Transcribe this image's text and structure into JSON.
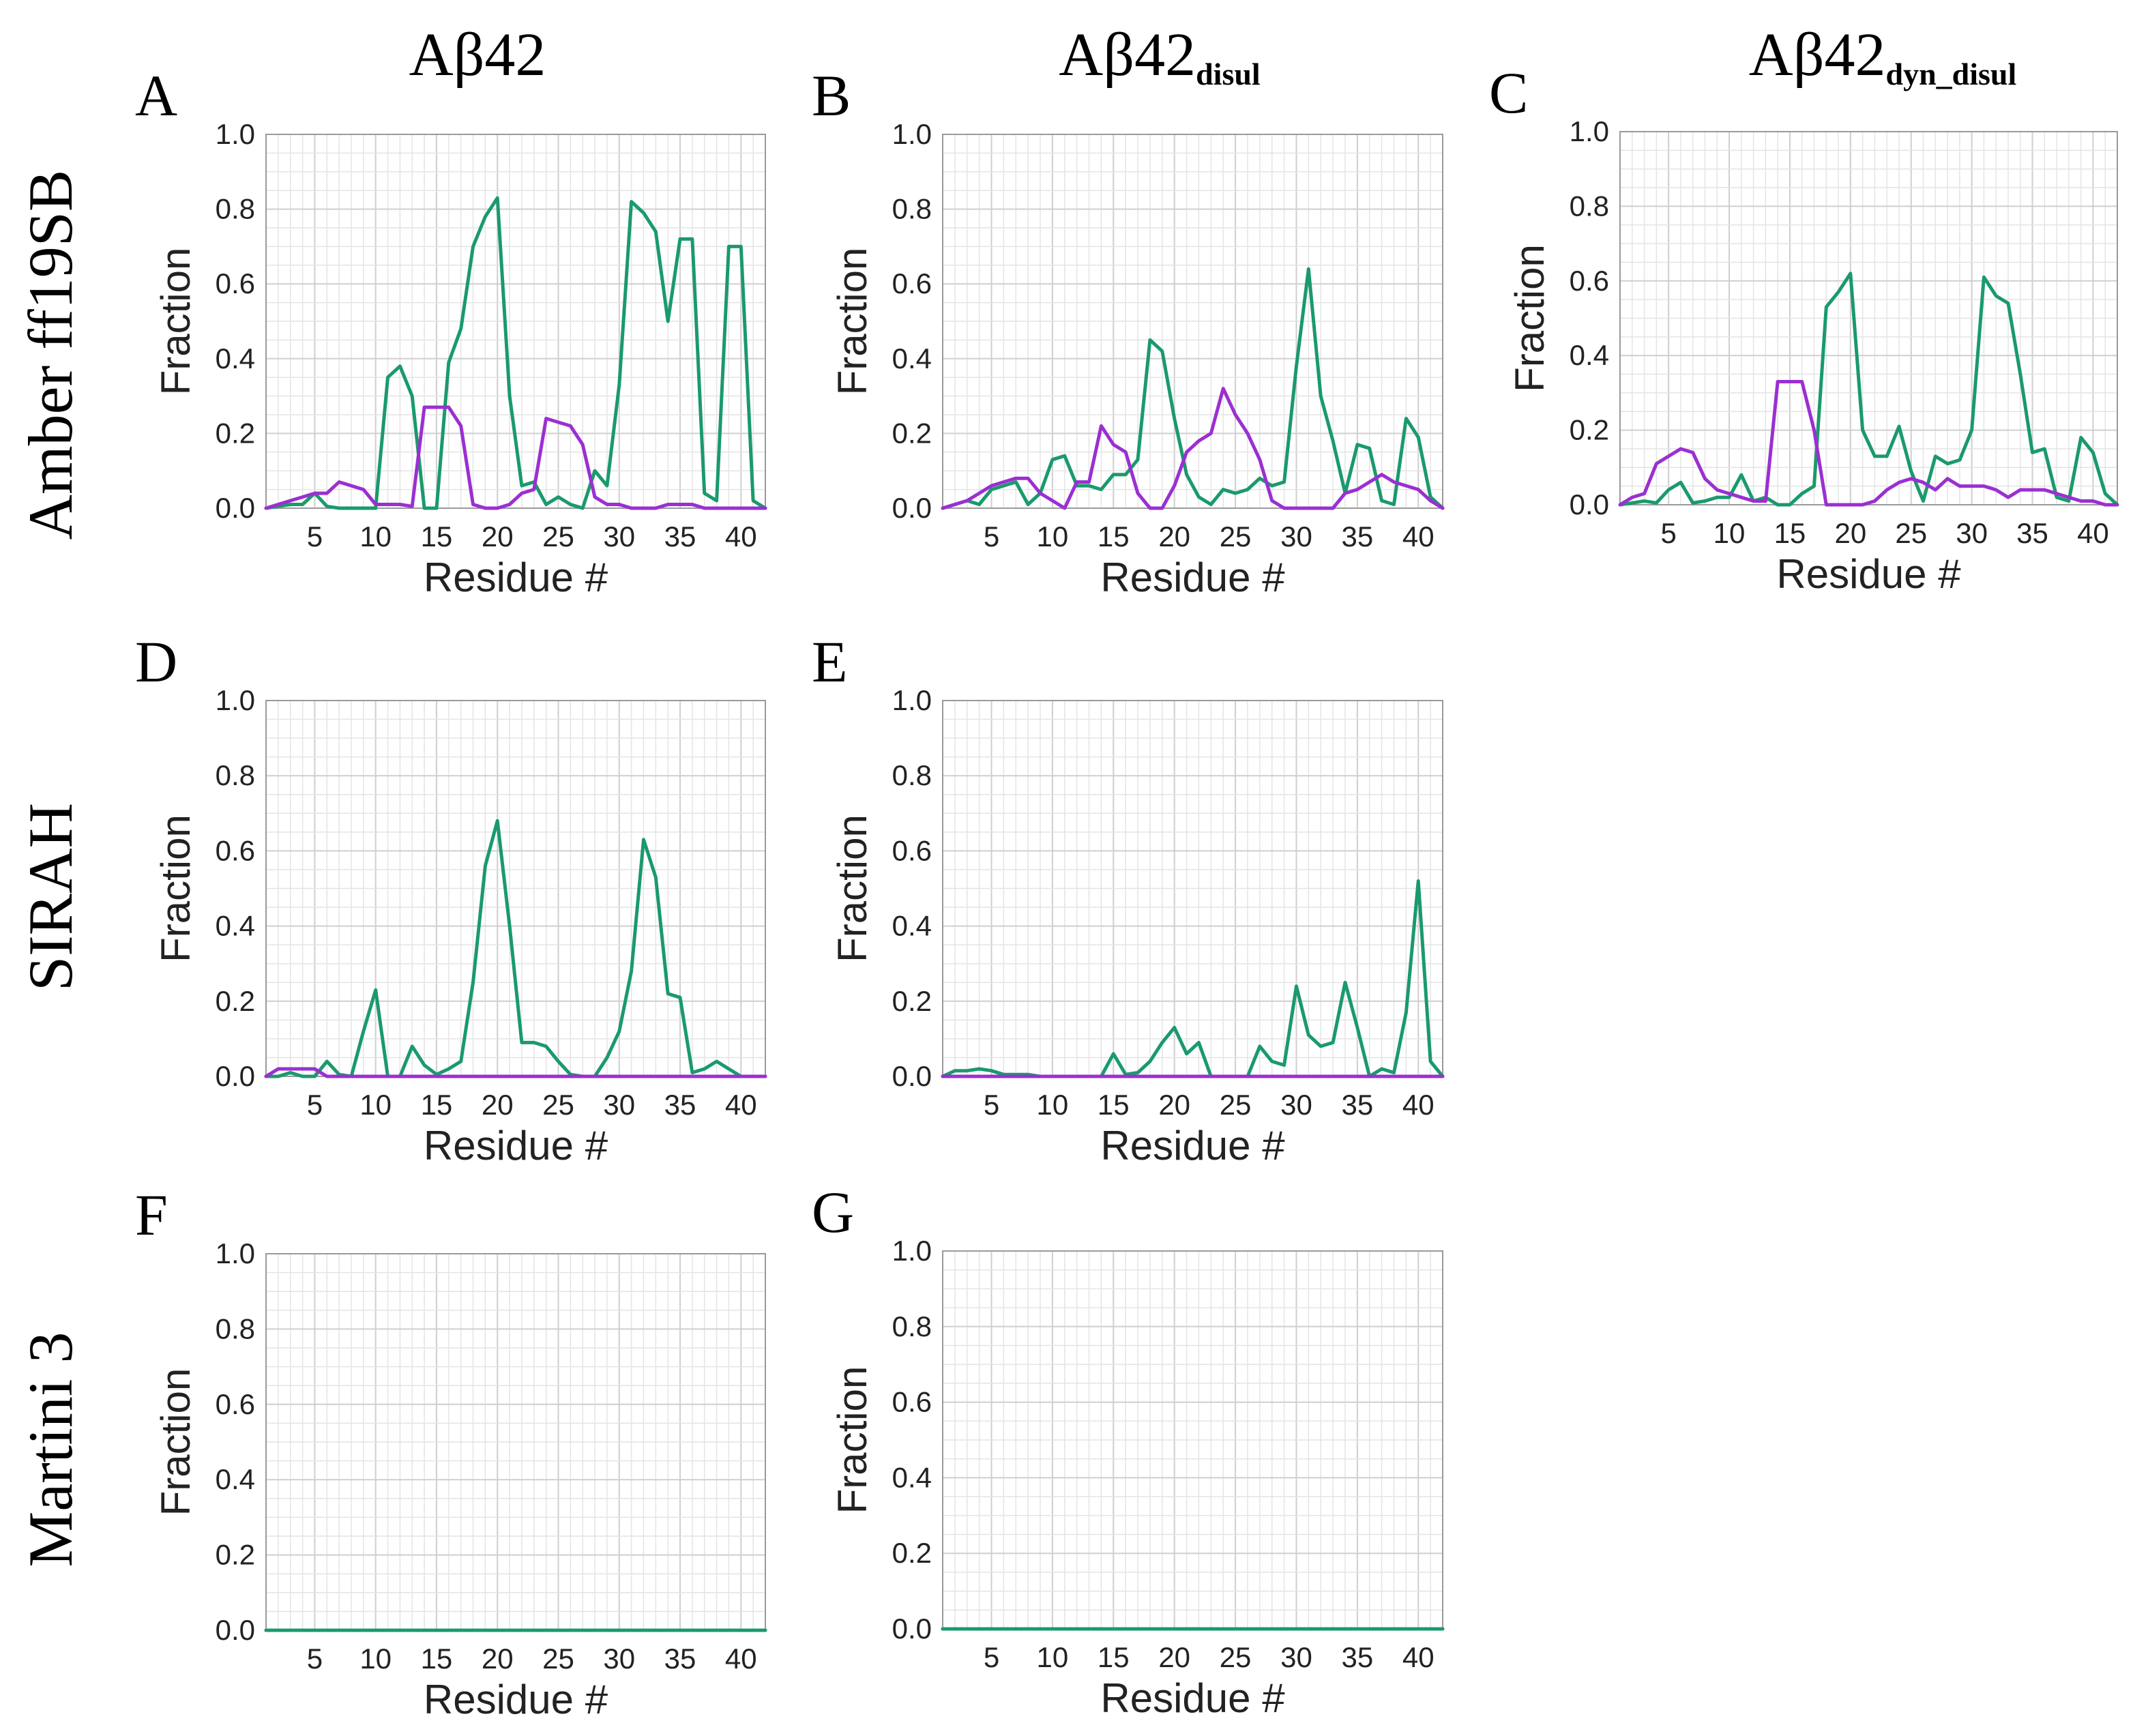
{
  "figure": {
    "columns": [
      {
        "base": "Aβ42",
        "sub": ""
      },
      {
        "base": "Aβ42",
        "sub": "disul"
      },
      {
        "base": "Aβ42",
        "sub": "dyn_disul"
      }
    ],
    "rows": [
      "Amber ff19SB",
      "SIRAH",
      "Martini 3"
    ]
  },
  "colors": {
    "green": "#1a9a6c",
    "purple": "#9b2fd2"
  },
  "chart_data": [
    {
      "panel": "A",
      "type": "line",
      "xlabel": "Residue #",
      "ylabel": "Fraction",
      "xlim": [
        1,
        42
      ],
      "ylim": [
        0,
        1.0
      ],
      "xticks": [
        5,
        10,
        15,
        20,
        25,
        30,
        35,
        40
      ],
      "yticks": [
        "0.0",
        "0.2",
        "0.4",
        "0.6",
        "0.8",
        "1.0"
      ],
      "series": [
        {
          "color": "green",
          "x": [
            1,
            2,
            3,
            4,
            5,
            6,
            7,
            8,
            9,
            10,
            11,
            12,
            13,
            14,
            15,
            16,
            17,
            18,
            19,
            20,
            21,
            22,
            23,
            24,
            25,
            26,
            27,
            28,
            29,
            30,
            31,
            32,
            33,
            34,
            35,
            36,
            37,
            38,
            39,
            40,
            41,
            42
          ],
          "y": [
            0,
            0.005,
            0.01,
            0.01,
            0.04,
            0.005,
            0,
            0,
            0,
            0,
            0.35,
            0.38,
            0.3,
            0,
            0,
            0.39,
            0.48,
            0.7,
            0.78,
            0.83,
            0.3,
            0.06,
            0.07,
            0.01,
            0.03,
            0.01,
            0,
            0.1,
            0.06,
            0.33,
            0.82,
            0.79,
            0.74,
            0.5,
            0.72,
            0.72,
            0.04,
            0.02,
            0.7,
            0.7,
            0.02,
            0
          ]
        },
        {
          "color": "purple",
          "x": [
            1,
            2,
            3,
            4,
            5,
            6,
            7,
            8,
            9,
            10,
            11,
            12,
            13,
            14,
            15,
            16,
            17,
            18,
            19,
            20,
            21,
            22,
            23,
            24,
            25,
            26,
            27,
            28,
            29,
            30,
            31,
            32,
            33,
            34,
            35,
            36,
            37,
            38,
            39,
            40,
            41,
            42
          ],
          "y": [
            0,
            0.01,
            0.02,
            0.03,
            0.04,
            0.04,
            0.07,
            0.06,
            0.05,
            0.01,
            0.01,
            0.01,
            0.005,
            0.27,
            0.27,
            0.27,
            0.22,
            0.01,
            0,
            0,
            0.01,
            0.04,
            0.05,
            0.24,
            0.23,
            0.22,
            0.17,
            0.03,
            0.01,
            0.01,
            0,
            0,
            0,
            0.01,
            0.01,
            0.01,
            0,
            0,
            0,
            0,
            0,
            0
          ]
        }
      ]
    },
    {
      "panel": "B",
      "type": "line",
      "xlabel": "Residue #",
      "ylabel": "Fraction",
      "xlim": [
        1,
        42
      ],
      "ylim": [
        0,
        1.0
      ],
      "xticks": [
        5,
        10,
        15,
        20,
        25,
        30,
        35,
        40
      ],
      "yticks": [
        "0.0",
        "0.2",
        "0.4",
        "0.6",
        "0.8",
        "1.0"
      ],
      "series": [
        {
          "color": "green",
          "x": [
            1,
            2,
            3,
            4,
            5,
            6,
            7,
            8,
            9,
            10,
            11,
            12,
            13,
            14,
            15,
            16,
            17,
            18,
            19,
            20,
            21,
            22,
            23,
            24,
            25,
            26,
            27,
            28,
            29,
            30,
            31,
            32,
            33,
            34,
            35,
            36,
            37,
            38,
            39,
            40,
            41,
            42
          ],
          "y": [
            0,
            0.01,
            0.02,
            0.01,
            0.05,
            0.06,
            0.07,
            0.01,
            0.04,
            0.13,
            0.14,
            0.06,
            0.06,
            0.05,
            0.09,
            0.09,
            0.13,
            0.45,
            0.42,
            0.24,
            0.09,
            0.03,
            0.01,
            0.05,
            0.04,
            0.05,
            0.08,
            0.06,
            0.07,
            0.38,
            0.64,
            0.3,
            0.18,
            0.04,
            0.17,
            0.16,
            0.02,
            0.01,
            0.24,
            0.19,
            0.03,
            0
          ]
        },
        {
          "color": "purple",
          "x": [
            1,
            2,
            3,
            4,
            5,
            6,
            7,
            8,
            9,
            10,
            11,
            12,
            13,
            14,
            15,
            16,
            17,
            18,
            19,
            20,
            21,
            22,
            23,
            24,
            25,
            26,
            27,
            28,
            29,
            30,
            31,
            32,
            33,
            34,
            35,
            36,
            37,
            38,
            39,
            40,
            41,
            42
          ],
          "y": [
            0,
            0.01,
            0.02,
            0.04,
            0.06,
            0.07,
            0.08,
            0.08,
            0.04,
            0.02,
            0,
            0.07,
            0.07,
            0.22,
            0.17,
            0.15,
            0.04,
            0,
            0,
            0.06,
            0.15,
            0.18,
            0.2,
            0.32,
            0.25,
            0.2,
            0.13,
            0.02,
            0,
            0,
            0,
            0,
            0,
            0.04,
            0.05,
            0.07,
            0.09,
            0.07,
            0.06,
            0.05,
            0.02,
            0
          ]
        }
      ]
    },
    {
      "panel": "C",
      "type": "line",
      "xlabel": "Residue #",
      "ylabel": "Fraction",
      "xlim": [
        1,
        42
      ],
      "ylim": [
        0,
        1.0
      ],
      "xticks": [
        5,
        10,
        15,
        20,
        25,
        30,
        35,
        40
      ],
      "yticks": [
        "0.0",
        "0.2",
        "0.4",
        "0.6",
        "0.8",
        "1.0"
      ],
      "series": [
        {
          "color": "green",
          "x": [
            1,
            2,
            3,
            4,
            5,
            6,
            7,
            8,
            9,
            10,
            11,
            12,
            13,
            14,
            15,
            16,
            17,
            18,
            19,
            20,
            21,
            22,
            23,
            24,
            25,
            26,
            27,
            28,
            29,
            30,
            31,
            32,
            33,
            34,
            35,
            36,
            37,
            38,
            39,
            40,
            41,
            42
          ],
          "y": [
            0,
            0.005,
            0.01,
            0.005,
            0.04,
            0.06,
            0.005,
            0.01,
            0.02,
            0.02,
            0.08,
            0.01,
            0.02,
            0,
            0,
            0.03,
            0.05,
            0.53,
            0.57,
            0.62,
            0.2,
            0.13,
            0.13,
            0.21,
            0.09,
            0.01,
            0.13,
            0.11,
            0.12,
            0.2,
            0.61,
            0.56,
            0.54,
            0.35,
            0.14,
            0.15,
            0.02,
            0.01,
            0.18,
            0.14,
            0.03,
            0
          ]
        },
        {
          "color": "purple",
          "x": [
            1,
            2,
            3,
            4,
            5,
            6,
            7,
            8,
            9,
            10,
            11,
            12,
            13,
            14,
            15,
            16,
            17,
            18,
            19,
            20,
            21,
            22,
            23,
            24,
            25,
            26,
            27,
            28,
            29,
            30,
            31,
            32,
            33,
            34,
            35,
            36,
            37,
            38,
            39,
            40,
            41,
            42
          ],
          "y": [
            0,
            0.02,
            0.03,
            0.11,
            0.13,
            0.15,
            0.14,
            0.07,
            0.04,
            0.03,
            0.02,
            0.01,
            0.01,
            0.33,
            0.33,
            0.33,
            0.2,
            0,
            0,
            0,
            0,
            0.01,
            0.04,
            0.06,
            0.07,
            0.06,
            0.04,
            0.07,
            0.05,
            0.05,
            0.05,
            0.04,
            0.02,
            0.04,
            0.04,
            0.04,
            0.03,
            0.02,
            0.01,
            0.01,
            0,
            0
          ]
        }
      ]
    },
    {
      "panel": "D",
      "type": "line",
      "xlabel": "Residue #",
      "ylabel": "Fraction",
      "xlim": [
        1,
        42
      ],
      "ylim": [
        0,
        1.0
      ],
      "xticks": [
        5,
        10,
        15,
        20,
        25,
        30,
        35,
        40
      ],
      "yticks": [
        "0.0",
        "0.2",
        "0.4",
        "0.6",
        "0.8",
        "1.0"
      ],
      "series": [
        {
          "color": "green",
          "x": [
            1,
            2,
            3,
            4,
            5,
            6,
            7,
            8,
            9,
            10,
            11,
            12,
            13,
            14,
            15,
            16,
            17,
            18,
            19,
            20,
            21,
            22,
            23,
            24,
            25,
            26,
            27,
            28,
            29,
            30,
            31,
            32,
            33,
            34,
            35,
            36,
            37,
            38,
            39,
            40,
            41,
            42
          ],
          "y": [
            0,
            0,
            0.01,
            0,
            0,
            0.04,
            0.005,
            0,
            0.12,
            0.23,
            0,
            0,
            0.08,
            0.03,
            0.005,
            0.02,
            0.04,
            0.25,
            0.56,
            0.68,
            0.4,
            0.09,
            0.09,
            0.08,
            0.04,
            0.005,
            0,
            0,
            0.05,
            0.12,
            0.28,
            0.63,
            0.53,
            0.22,
            0.21,
            0.01,
            0.02,
            0.04,
            0.02,
            0,
            0,
            0
          ]
        },
        {
          "color": "purple",
          "x": [
            1,
            2,
            3,
            4,
            5,
            6,
            7,
            8,
            9,
            10,
            11,
            12,
            13,
            14,
            15,
            16,
            17,
            18,
            19,
            20,
            21,
            22,
            23,
            24,
            25,
            26,
            27,
            28,
            29,
            30,
            31,
            32,
            33,
            34,
            35,
            36,
            37,
            38,
            39,
            40,
            41,
            42
          ],
          "y": [
            0,
            0.02,
            0.02,
            0.02,
            0.02,
            0,
            0,
            0,
            0,
            0,
            0,
            0,
            0,
            0,
            0,
            0,
            0,
            0,
            0,
            0,
            0,
            0,
            0,
            0,
            0,
            0,
            0,
            0,
            0,
            0,
            0,
            0,
            0,
            0,
            0,
            0,
            0,
            0,
            0,
            0,
            0,
            0
          ]
        }
      ]
    },
    {
      "panel": "E",
      "type": "line",
      "xlabel": "Residue #",
      "ylabel": "Fraction",
      "xlim": [
        1,
        42
      ],
      "ylim": [
        0,
        1.0
      ],
      "xticks": [
        5,
        10,
        15,
        20,
        25,
        30,
        35,
        40
      ],
      "yticks": [
        "0.0",
        "0.2",
        "0.4",
        "0.6",
        "0.8",
        "1.0"
      ],
      "series": [
        {
          "color": "green",
          "x": [
            1,
            2,
            3,
            4,
            5,
            6,
            7,
            8,
            9,
            10,
            11,
            12,
            13,
            14,
            15,
            16,
            17,
            18,
            19,
            20,
            21,
            22,
            23,
            24,
            25,
            26,
            27,
            28,
            29,
            30,
            31,
            32,
            33,
            34,
            35,
            36,
            37,
            38,
            39,
            40,
            41,
            42
          ],
          "y": [
            0,
            0.015,
            0.015,
            0.02,
            0.015,
            0.005,
            0.005,
            0.005,
            0,
            0,
            0,
            0,
            0,
            0,
            0.06,
            0.005,
            0.01,
            0.04,
            0.09,
            0.13,
            0.06,
            0.09,
            0,
            0,
            0,
            0,
            0.08,
            0.04,
            0.03,
            0.24,
            0.11,
            0.08,
            0.09,
            0.25,
            0.13,
            0,
            0.02,
            0.01,
            0.17,
            0.52,
            0.04,
            0
          ]
        },
        {
          "color": "purple",
          "x": [
            1,
            2,
            3,
            4,
            5,
            6,
            7,
            8,
            9,
            10,
            11,
            12,
            13,
            14,
            15,
            16,
            17,
            18,
            19,
            20,
            21,
            22,
            23,
            24,
            25,
            26,
            27,
            28,
            29,
            30,
            31,
            32,
            33,
            34,
            35,
            36,
            37,
            38,
            39,
            40,
            41,
            42
          ],
          "y": [
            0,
            0,
            0,
            0,
            0,
            0,
            0,
            0,
            0,
            0,
            0,
            0,
            0,
            0,
            0,
            0,
            0,
            0,
            0,
            0,
            0,
            0,
            0,
            0,
            0,
            0,
            0,
            0,
            0,
            0,
            0,
            0,
            0,
            0,
            0,
            0,
            0,
            0,
            0,
            0,
            0,
            0
          ]
        }
      ]
    },
    {
      "panel": "F",
      "type": "line",
      "xlabel": "Residue #",
      "ylabel": "Fraction",
      "xlim": [
        1,
        42
      ],
      "ylim": [
        0,
        1.0
      ],
      "xticks": [
        5,
        10,
        15,
        20,
        25,
        30,
        35,
        40
      ],
      "yticks": [
        "0.0",
        "0.2",
        "0.4",
        "0.6",
        "0.8",
        "1.0"
      ],
      "series": [
        {
          "color": "purple",
          "x": [
            1,
            42
          ],
          "y": [
            0,
            0
          ]
        },
        {
          "color": "green",
          "x": [
            1,
            42
          ],
          "y": [
            0,
            0
          ]
        }
      ]
    },
    {
      "panel": "G",
      "type": "line",
      "xlabel": "Residue #",
      "ylabel": "Fraction",
      "xlim": [
        1,
        42
      ],
      "ylim": [
        0,
        1.0
      ],
      "xticks": [
        5,
        10,
        15,
        20,
        25,
        30,
        35,
        40
      ],
      "yticks": [
        "0.0",
        "0.2",
        "0.4",
        "0.6",
        "0.8",
        "1.0"
      ],
      "series": [
        {
          "color": "purple",
          "x": [
            1,
            42
          ],
          "y": [
            0,
            0
          ]
        },
        {
          "color": "green",
          "x": [
            1,
            42
          ],
          "y": [
            0,
            0
          ]
        }
      ]
    }
  ]
}
